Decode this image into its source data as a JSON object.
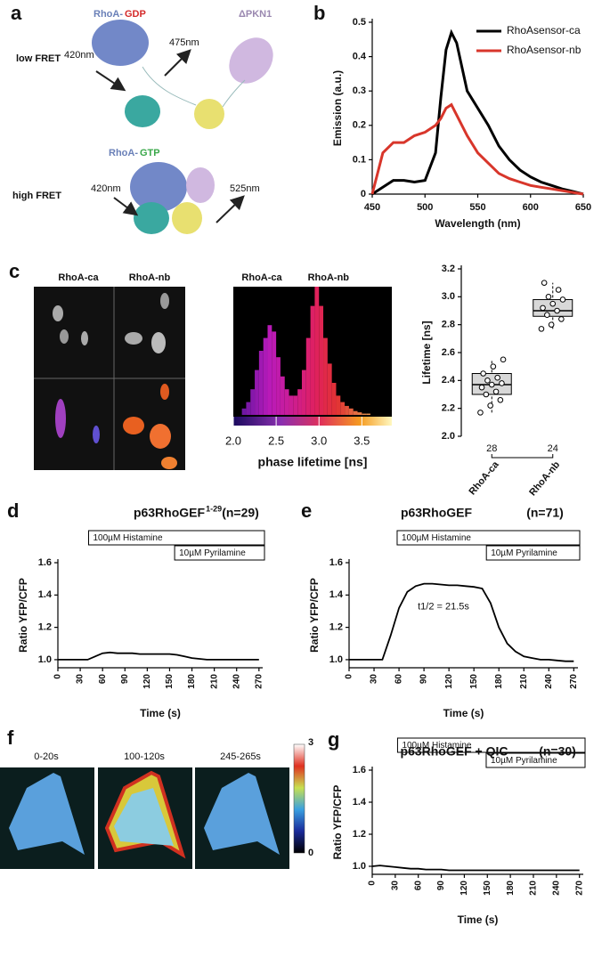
{
  "panel_labels": [
    "a",
    "b",
    "c",
    "d",
    "e",
    "f",
    "g"
  ],
  "diagram_a": {
    "low_rhoa": "RhoA-",
    "low_state": "GDP",
    "partner": "ΔPKN1",
    "low_label": "low FRET",
    "low_in": "420nm",
    "low_out": "475nm",
    "high_rhoa": "RhoA-",
    "high_state": "GTP",
    "high_label": "high FRET",
    "high_in": "420nm",
    "high_out": "525nm"
  },
  "images_c": {
    "columns": [
      "RhoA-ca",
      "RhoA-nb"
    ]
  },
  "images_f": {
    "frames": [
      "0-20s",
      "100-120s",
      "245-265s"
    ],
    "colorbar_max": "3",
    "colorbar_min": "0"
  },
  "chart_data": [
    {
      "type": "line",
      "xlabel": "Wavelength (nm)",
      "ylabel": "Emission (a.u.)",
      "x": [
        450,
        460,
        470,
        480,
        490,
        500,
        510,
        515,
        520,
        525,
        530,
        540,
        550,
        560,
        570,
        580,
        590,
        600,
        610,
        620,
        630,
        640,
        650
      ],
      "series": [
        {
          "name": "RhoAsensor-ca",
          "color": "#000000",
          "values": [
            0,
            0.02,
            0.04,
            0.04,
            0.035,
            0.04,
            0.12,
            0.28,
            0.42,
            0.47,
            0.44,
            0.3,
            0.25,
            0.2,
            0.14,
            0.1,
            0.07,
            0.05,
            0.035,
            0.025,
            0.015,
            0.008,
            0
          ]
        },
        {
          "name": "RhoAsensor-nb",
          "color": "#d8362b",
          "values": [
            0,
            0.12,
            0.15,
            0.15,
            0.17,
            0.18,
            0.2,
            0.22,
            0.25,
            0.26,
            0.23,
            0.17,
            0.12,
            0.09,
            0.06,
            0.045,
            0.035,
            0.025,
            0.02,
            0.015,
            0.01,
            0.005,
            0
          ]
        }
      ],
      "xlim": [
        450,
        650
      ],
      "xticks": [
        450,
        500,
        550,
        600,
        650
      ],
      "ylim": [
        0,
        0.5
      ],
      "yticks": [
        0,
        0.1,
        0.2,
        0.3,
        0.4,
        0.5
      ],
      "legend": "upper right"
    },
    {
      "type": "histogram",
      "xlabel": "phase lifetime [ns]",
      "peak_labels": [
        "RhoA-ca",
        "RhoA-nb"
      ],
      "bins": [
        2.1,
        2.15,
        2.2,
        2.25,
        2.3,
        2.35,
        2.4,
        2.45,
        2.5,
        2.55,
        2.6,
        2.65,
        2.7,
        2.75,
        2.8,
        2.85,
        2.9,
        2.95,
        3.0,
        3.05,
        3.1,
        3.15,
        3.2,
        3.25,
        3.3,
        3.35,
        3.4,
        3.45,
        3.5,
        3.55,
        3.6
      ],
      "counts": [
        0.05,
        0.1,
        0.2,
        0.35,
        0.5,
        0.6,
        0.7,
        0.65,
        0.45,
        0.3,
        0.2,
        0.15,
        0.15,
        0.2,
        0.35,
        0.6,
        0.85,
        1.0,
        0.85,
        0.6,
        0.4,
        0.25,
        0.15,
        0.1,
        0.07,
        0.05,
        0.03,
        0.02,
        0.01,
        0.01
      ],
      "xlim": [
        2.0,
        3.85
      ],
      "xticks": [
        {
          "value": 2,
          "label": "2.0"
        },
        2.5,
        {
          "value": 3,
          "label": "3.0"
        },
        3.5
      ]
    },
    {
      "type": "box",
      "ylabel": "Lifetime [ns]",
      "categories": [
        "RhoA-ca",
        "RhoA-nb"
      ],
      "n": [
        28,
        24
      ],
      "boxes": [
        {
          "min": 2.17,
          "q1": 2.3,
          "median": 2.37,
          "q3": 2.45,
          "max": 2.55,
          "points": [
            2.17,
            2.22,
            2.26,
            2.3,
            2.32,
            2.35,
            2.37,
            2.38,
            2.4,
            2.42,
            2.45,
            2.5,
            2.55
          ]
        },
        {
          "min": 2.77,
          "q1": 2.86,
          "median": 2.9,
          "q3": 2.98,
          "max": 3.1,
          "points": [
            2.77,
            2.8,
            2.84,
            2.87,
            2.9,
            2.92,
            2.95,
            2.98,
            3.0,
            3.05,
            3.1
          ]
        }
      ],
      "ylim": [
        2.0,
        3.2
      ],
      "yticks": [
        {
          "value": 2,
          "label": "2.0"
        },
        2.2,
        2.4,
        2.6,
        2.8,
        {
          "value": 3,
          "label": "3.0"
        },
        3.2
      ]
    },
    {
      "type": "line",
      "title": "p63RhoGEF",
      "title_sup": "1-29",
      "subtitle": "(n=29)",
      "xlabel": "Time (s)",
      "ylabel": "Ratio YFP/CFP",
      "annotations": [
        "100µM Histamine",
        "10µM Pyrilamine"
      ],
      "x": [
        0,
        10,
        20,
        30,
        40,
        50,
        60,
        70,
        80,
        90,
        100,
        110,
        120,
        130,
        140,
        150,
        160,
        170,
        180,
        190,
        200,
        210,
        220,
        230,
        240,
        250,
        260,
        270
      ],
      "series": [
        {
          "color": "#000000",
          "values": [
            1,
            1,
            1,
            1,
            1,
            1.02,
            1.04,
            1.045,
            1.04,
            1.04,
            1.04,
            1.035,
            1.035,
            1.035,
            1.035,
            1.035,
            1.03,
            1.02,
            1.01,
            1.005,
            1,
            1,
            1,
            1,
            1,
            1,
            1,
            1
          ]
        }
      ],
      "xlim": [
        0,
        275
      ],
      "xticks": [
        0,
        30,
        60,
        90,
        120,
        150,
        180,
        210,
        240,
        270
      ],
      "ylim": [
        0.95,
        1.6
      ],
      "yticks": [
        {
          "value": 1,
          "label": "1.0"
        },
        1.2,
        1.4,
        1.6
      ]
    },
    {
      "type": "line",
      "title": "p63RhoGEF",
      "subtitle": "(n=71)",
      "note": "t1/2 = 21.5s",
      "xlabel": "Time (s)",
      "ylabel": "Ratio YFP/CFP",
      "annotations": [
        "100µM Histamine",
        "10µM Pyrilamine"
      ],
      "x": [
        0,
        10,
        20,
        30,
        40,
        50,
        60,
        70,
        80,
        90,
        100,
        110,
        120,
        130,
        140,
        150,
        160,
        170,
        180,
        190,
        200,
        210,
        220,
        230,
        240,
        250,
        260,
        270
      ],
      "series": [
        {
          "color": "#000000",
          "values": [
            1,
            1,
            1,
            1,
            1,
            1.15,
            1.32,
            1.42,
            1.455,
            1.47,
            1.47,
            1.465,
            1.46,
            1.46,
            1.455,
            1.45,
            1.44,
            1.35,
            1.2,
            1.1,
            1.05,
            1.02,
            1.01,
            1,
            1,
            0.995,
            0.99,
            0.99
          ]
        }
      ],
      "xlim": [
        0,
        275
      ],
      "xticks": [
        0,
        30,
        60,
        90,
        120,
        150,
        180,
        210,
        240,
        270
      ],
      "ylim": [
        0.95,
        1.6
      ],
      "yticks": [
        {
          "value": 1,
          "label": "1.0"
        },
        1.2,
        1.4,
        1.6
      ]
    },
    {
      "type": "line",
      "title": "p63RhoGEF + QIC",
      "subtitle": "(n=30)",
      "xlabel": "Time (s)",
      "ylabel": "Ratio YFP/CFP",
      "annotations": [
        "100µM Histamine",
        "10µM Pyrilamine"
      ],
      "x": [
        0,
        10,
        20,
        30,
        40,
        50,
        60,
        70,
        80,
        90,
        100,
        110,
        120,
        130,
        140,
        150,
        160,
        170,
        180,
        190,
        200,
        210,
        220,
        230,
        240,
        250,
        260,
        270
      ],
      "series": [
        {
          "color": "#000000",
          "values": [
            1,
            1.005,
            1,
            0.995,
            0.99,
            0.985,
            0.985,
            0.98,
            0.98,
            0.98,
            0.975,
            0.975,
            0.975,
            0.975,
            0.975,
            0.975,
            0.975,
            0.975,
            0.975,
            0.975,
            0.975,
            0.975,
            0.975,
            0.975,
            0.975,
            0.975,
            0.975,
            0.975
          ]
        }
      ],
      "xlim": [
        0,
        275
      ],
      "xticks": [
        0,
        30,
        60,
        90,
        120,
        150,
        180,
        210,
        240,
        270
      ],
      "ylim": [
        0.95,
        1.6
      ],
      "yticks": [
        {
          "value": 1,
          "label": "1.0"
        },
        1.2,
        1.4,
        1.6
      ]
    }
  ]
}
